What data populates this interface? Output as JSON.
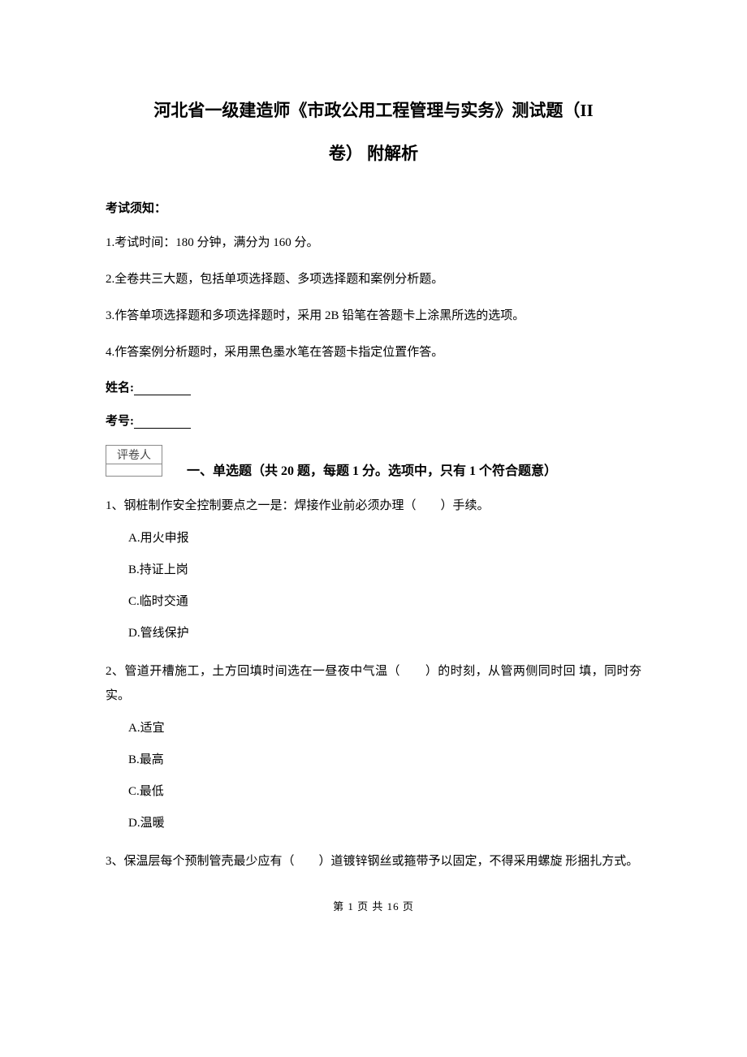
{
  "title_line1": "河北省一级建造师《市政公用工程管理与实务》测试题（II",
  "title_line2": "卷）  附解析",
  "notice_header": "考试须知：",
  "notices": [
    "1.考试时间：180 分钟，满分为 160 分。",
    "2.全卷共三大题，包括单项选择题、多项选择题和案例分析题。",
    "3.作答单项选择题和多项选择题时，采用 2B 铅笔在答题卡上涂黑所选的选项。",
    "4.作答案例分析题时，采用黑色墨水笔在答题卡指定位置作答。"
  ],
  "name_label": "姓名:",
  "id_label": "考号:",
  "scorer_label": "评卷人",
  "section1_heading": "一、单选题（共 20 题，每题 1 分。选项中，只有 1 个符合题意）",
  "questions": [
    {
      "text": "1、钢桩制作安全控制要点之一是：焊接作业前必须办理（　　）手续。",
      "options": [
        "A.用火申报",
        "B.持证上岗",
        "C.临时交通",
        "D.管线保护"
      ]
    },
    {
      "text": "2、管道开槽施工，土方回填时间选在一昼夜中气温（　　）的时刻，从管两侧同时回  填，同时夯实。",
      "options": [
        "A.适宜",
        "B.最高",
        "C.最低",
        "D.温暖"
      ]
    },
    {
      "text": "3、保温层每个预制管壳最少应有（　　）道镀锌钢丝或箍带予以固定，不得采用螺旋  形捆扎方式。",
      "options": []
    }
  ],
  "footer": "第  1  页  共  16  页"
}
